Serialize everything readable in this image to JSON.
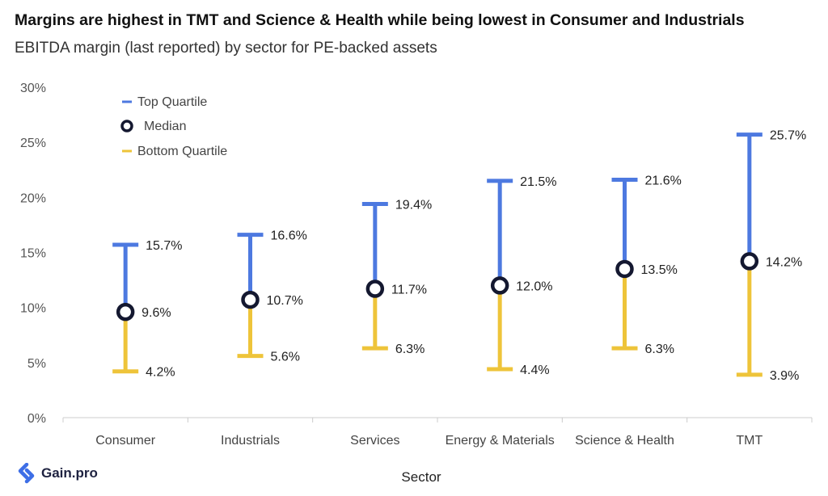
{
  "title": "Margins are highest in TMT and Science & Health while being lowest in Consumer and Industrials",
  "subtitle": "EBITDA margin (last reported) by sector for PE-backed assets",
  "brand": "Gain.pro",
  "colors": {
    "top": "#4d79e0",
    "bottom": "#eec43a",
    "median_ring": "#141830",
    "axis": "#cccccc"
  },
  "chart_data": {
    "type": "range-dot",
    "xlabel": "Sector",
    "ylabel": "",
    "ylim": [
      0,
      30
    ],
    "yticks": [
      0,
      5,
      10,
      15,
      20,
      25,
      30
    ],
    "ytick_labels": [
      "0%",
      "5%",
      "10%",
      "15%",
      "20%",
      "25%",
      "30%"
    ],
    "categories": [
      "Consumer",
      "Industrials",
      "Services",
      "Energy & Materials",
      "Science & Health",
      "TMT"
    ],
    "series": [
      {
        "name": "Top Quartile",
        "values": [
          15.7,
          16.6,
          19.4,
          21.5,
          21.6,
          25.7
        ],
        "labels": [
          "15.7%",
          "16.6%",
          "19.4%",
          "21.5%",
          "21.6%",
          "25.7%"
        ]
      },
      {
        "name": "Median",
        "values": [
          9.6,
          10.7,
          11.7,
          12.0,
          13.5,
          14.2
        ],
        "labels": [
          "9.6%",
          "10.7%",
          "11.7%",
          "12.0%",
          "13.5%",
          "14.2%"
        ]
      },
      {
        "name": "Bottom Quartile",
        "values": [
          4.2,
          5.6,
          6.3,
          4.4,
          6.3,
          3.9
        ],
        "labels": [
          "4.2%",
          "5.6%",
          "6.3%",
          "4.4%",
          "6.3%",
          "3.9%"
        ]
      }
    ],
    "legend": [
      "Top Quartile",
      "Median",
      "Bottom Quartile"
    ],
    "legend_position": "top-left",
    "grid": false
  }
}
